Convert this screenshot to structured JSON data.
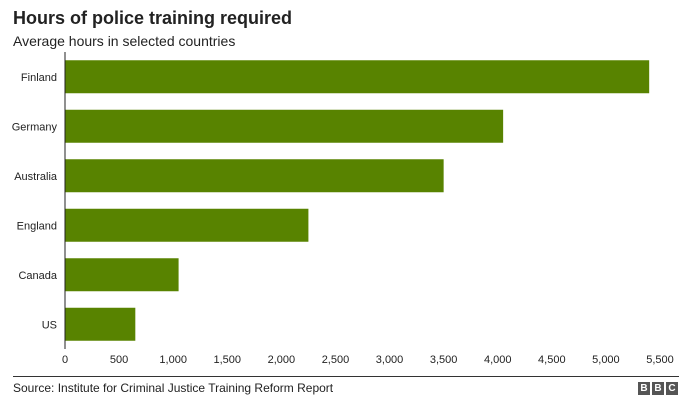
{
  "header": {
    "title": "Hours of police training required",
    "subtitle": "Average hours in selected countries"
  },
  "footer": {
    "source": "Source: Institute for Criminal Justice Training Reform Report",
    "logo_letters": [
      "B",
      "B",
      "C"
    ]
  },
  "colors": {
    "bar": "#588300",
    "axis": "#222222",
    "text": "#222222"
  },
  "chart_data": {
    "type": "bar",
    "orientation": "horizontal",
    "title": "Hours of police training required",
    "subtitle": "Average hours in selected countries",
    "categories": [
      "Finland",
      "Germany",
      "Australia",
      "England",
      "Canada",
      "US"
    ],
    "values": [
      5400,
      4050,
      3500,
      2250,
      1050,
      650
    ],
    "xlim": [
      0,
      5500
    ],
    "xticks": [
      0,
      500,
      1000,
      1500,
      2000,
      2500,
      3000,
      3500,
      4000,
      4500,
      5000,
      5500
    ],
    "xtick_labels": [
      "0",
      "500",
      "1,000",
      "1,500",
      "2,000",
      "2,500",
      "3,000",
      "3,500",
      "4,000",
      "4,500",
      "5,000",
      "5,500"
    ],
    "grid": false,
    "legend": "none"
  }
}
